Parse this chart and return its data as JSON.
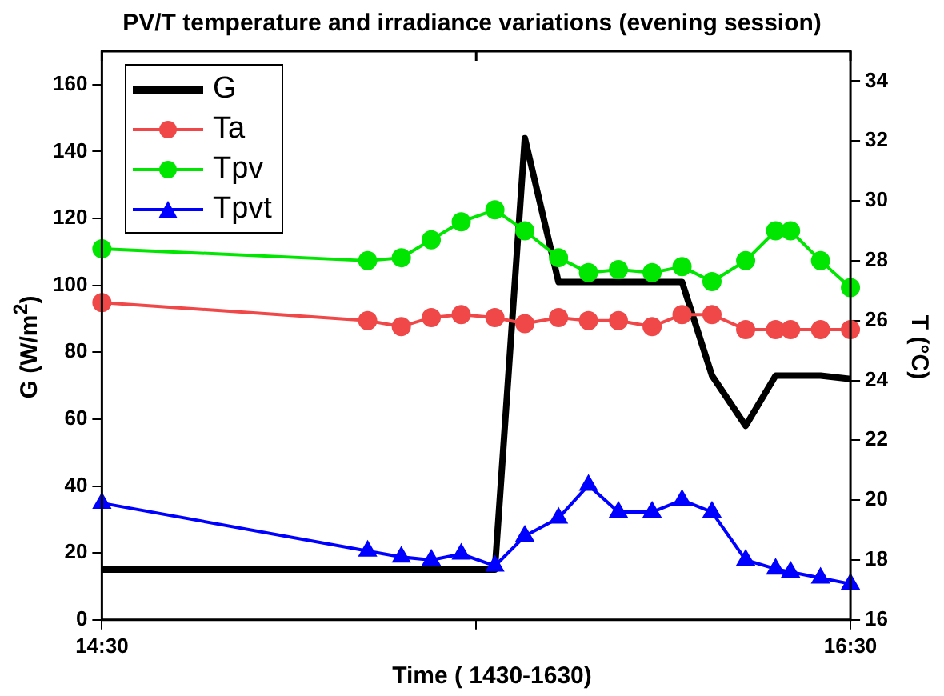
{
  "chart_data": {
    "type": "line",
    "title": "PV/T temperature and irradiance variations (evening session)",
    "xlabel": "Time ( 1430-1630)",
    "ylabel": "G (W/m$^{2}$)",
    "y2label": "T (°C)",
    "x": [
      14.5,
      15.21,
      15.3,
      15.38,
      15.46,
      15.55,
      15.63,
      15.72,
      15.8,
      15.88,
      15.97,
      16.05,
      16.13,
      16.22,
      16.3,
      16.34,
      16.42,
      16.5
    ],
    "xlim": [
      14.5,
      16.5
    ],
    "xticks": [
      {
        "value": 14.5,
        "label": "14:30"
      },
      {
        "value": 15.5,
        "label": null
      },
      {
        "value": 16.5,
        "label": "16:30"
      }
    ],
    "ylim": [
      0,
      170
    ],
    "yticks": [
      0,
      20,
      40,
      60,
      80,
      100,
      120,
      140,
      160
    ],
    "y2lim": [
      16,
      35
    ],
    "y2ticks": [
      16,
      18,
      20,
      22,
      24,
      26,
      28,
      30,
      32,
      34
    ],
    "grid": false,
    "legend": "top left",
    "line_style": "solid",
    "series": [
      {
        "name": "G",
        "color": "#000000",
        "marker": "none",
        "values": [
          15,
          15,
          15,
          15,
          15,
          15,
          144,
          101,
          101,
          101,
          101,
          101,
          73,
          58,
          73,
          73,
          73,
          72
        ]
      },
      {
        "name": "Ta",
        "color": "#f04848",
        "marker": "circle",
        "axis": "y2",
        "values": [
          26.6,
          26.0,
          25.8,
          26.1,
          26.2,
          26.1,
          25.9,
          26.1,
          26.0,
          26.0,
          25.8,
          26.2,
          26.2,
          25.7,
          25.7,
          25.7,
          25.7,
          25.7
        ]
      },
      {
        "name": "Tpv",
        "color": "#00e600",
        "marker": "circle",
        "axis": "y2",
        "values": [
          28.4,
          28.0,
          28.1,
          28.7,
          29.3,
          29.7,
          29.0,
          28.1,
          27.6,
          27.7,
          27.6,
          27.8,
          27.3,
          28.0,
          29.0,
          29.0,
          28.0,
          27.1
        ]
      },
      {
        "name": "Tpvt",
        "color": "#0000ff",
        "marker": "triangle",
        "axis": "y2",
        "values": [
          19.9,
          18.3,
          18.1,
          18.0,
          18.2,
          17.8,
          18.8,
          19.4,
          20.5,
          19.6,
          19.6,
          20.0,
          19.6,
          18.0,
          17.7,
          17.6,
          17.4,
          17.2
        ]
      }
    ]
  }
}
